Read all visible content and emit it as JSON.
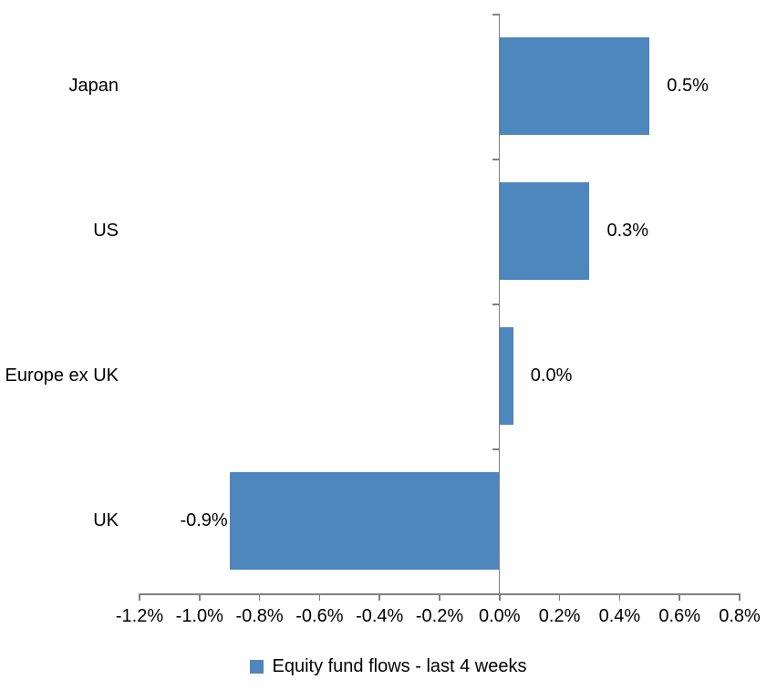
{
  "chart_data": {
    "type": "bar",
    "orientation": "horizontal",
    "categories": [
      "Japan",
      "US",
      "Europe ex UK",
      "UK"
    ],
    "values": [
      0.5,
      0.3,
      0.0,
      -0.9
    ],
    "data_labels": [
      "0.5%",
      "0.3%",
      "0.0%",
      "-0.9%"
    ],
    "unit": "%",
    "xlim": [
      -1.2,
      0.8
    ],
    "x_tick_step": 0.2,
    "x_tick_labels": [
      "-1.2%",
      "-1.0%",
      "-0.8%",
      "-0.6%",
      "-0.4%",
      "-0.2%",
      "0.0%",
      "0.2%",
      "0.4%",
      "0.6%",
      "0.8%"
    ],
    "grid": false,
    "legend_label": "Equity fund flows - last 4 weeks",
    "legend_position": "bottom",
    "colors": {
      "bar": "#4E86BE",
      "axis": "#808080",
      "text": "#000000",
      "background": "#FFFFFF"
    }
  }
}
